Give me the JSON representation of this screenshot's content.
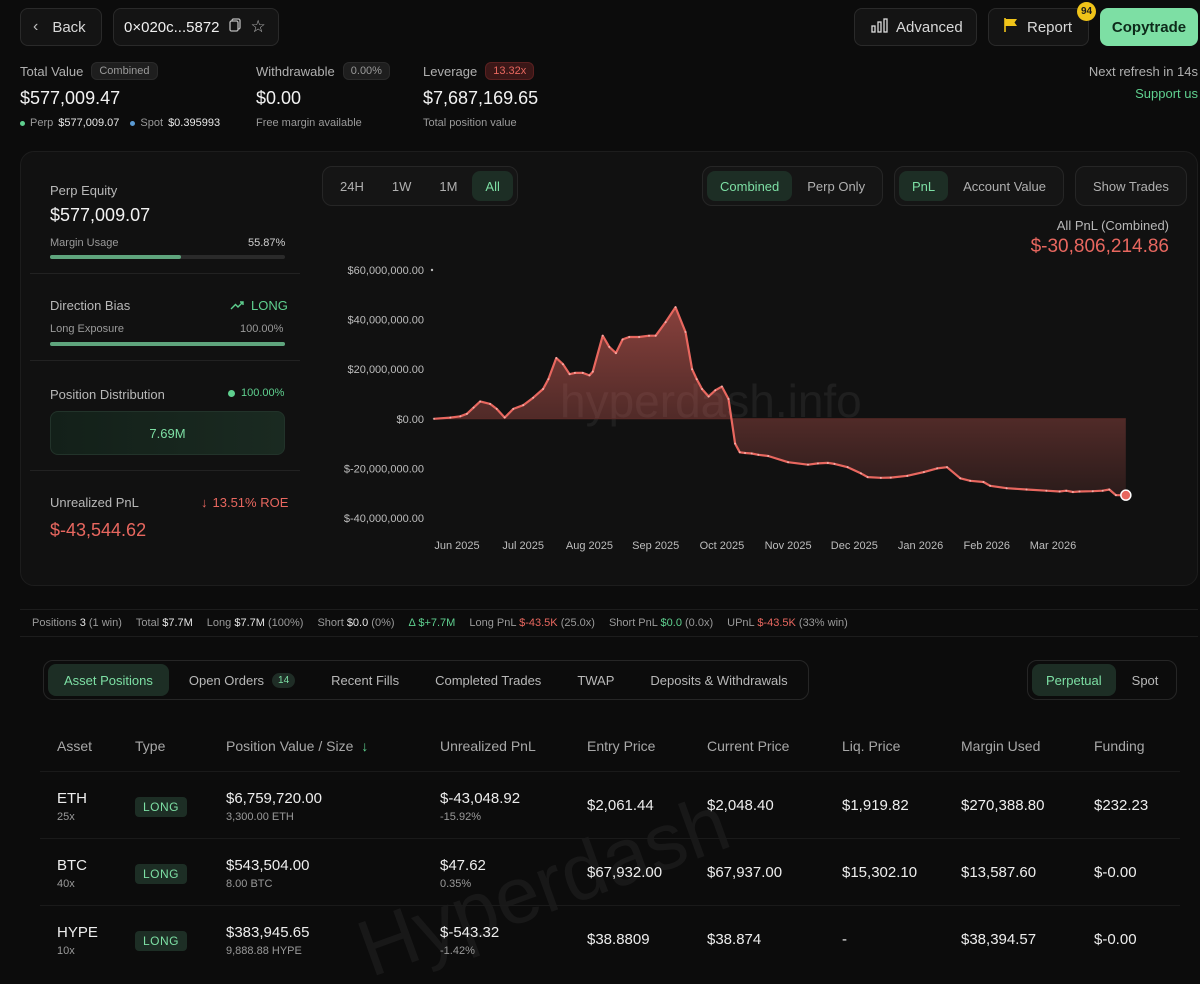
{
  "header": {
    "back_label": "Back",
    "address": "0×020c...5872",
    "advanced_label": "Advanced",
    "report_label": "Report",
    "report_badge": "94",
    "copytrade_label": "Copytrade"
  },
  "summary": {
    "total_value": {
      "label": "Total Value",
      "pill": "Combined",
      "value": "$577,009.47",
      "perp_label": "Perp",
      "perp_value": "$577,009.07",
      "spot_label": "Spot",
      "spot_value": "$0.395993"
    },
    "withdrawable": {
      "label": "Withdrawable",
      "pill": "0.00%",
      "value": "$0.00",
      "sub": "Free margin available"
    },
    "leverage": {
      "label": "Leverage",
      "pill": "13.32x",
      "value": "$7,687,169.65",
      "sub": "Total position value"
    },
    "refresh_text": "Next refresh in 14s",
    "support_label": "Support us"
  },
  "left_panel": {
    "perp_equity_label": "Perp Equity",
    "perp_equity_value": "$577,009.07",
    "margin_usage_label": "Margin Usage",
    "margin_usage_value": "55.87%",
    "margin_usage_fraction": 0.5587,
    "direction_bias_label": "Direction Bias",
    "direction_bias_value": "LONG",
    "long_exposure_label": "Long Exposure",
    "long_exposure_value": "100.00%",
    "long_exposure_fraction": 1.0,
    "position_distribution_label": "Position Distribution",
    "position_distribution_value": "100.00%",
    "distribution_bar_label": "7.69M",
    "unrealized_pnl_label": "Unrealized PnL",
    "unrealized_roe": "13.51% ROE",
    "unrealized_pnl_value": "$-43,544.62"
  },
  "chart_controls": {
    "ranges": [
      "24H",
      "1W",
      "1M",
      "All"
    ],
    "active_range": "All",
    "scope": [
      "Combined",
      "Perp Only"
    ],
    "active_scope": "Combined",
    "metric": [
      "PnL",
      "Account Value"
    ],
    "active_metric": "PnL",
    "show_trades_label": "Show Trades"
  },
  "chart_data": {
    "type": "area",
    "title": "All PnL (Combined)",
    "headline_value": "$-30,806,214.86",
    "watermark": "hyperdash.info",
    "x_tick_labels": [
      "Jun 2025",
      "Jul 2025",
      "Aug 2025",
      "Sep 2025",
      "Oct 2025",
      "Nov 2025",
      "Dec 2025",
      "Jan 2026",
      "Feb 2026",
      "Mar 2026"
    ],
    "y_tick_labels": [
      "$60,000,000.00",
      "$40,000,000.00",
      "$20,000,000.00",
      "$0.00",
      "$-20,000,000.00",
      "$-40,000,000.00"
    ],
    "y_ticks": [
      60000000,
      40000000,
      20000000,
      0,
      -20000000,
      -40000000
    ],
    "ylim": [
      -40000000,
      60000000
    ],
    "x_month_positions": [
      0,
      1,
      2,
      3,
      4,
      5,
      6,
      7,
      8,
      9
    ],
    "series": [
      {
        "x": [
          -0.35,
          -0.1,
          0.05,
          0.15,
          0.25,
          0.35,
          0.5,
          0.6,
          0.72,
          0.85,
          1.0,
          1.15,
          1.3,
          1.38,
          1.5,
          1.6,
          1.7,
          1.78,
          1.9,
          2.0,
          2.05,
          2.2,
          2.3,
          2.4,
          2.5,
          2.6,
          2.75,
          2.9,
          3.0,
          3.15,
          3.3,
          3.45,
          3.55,
          3.62,
          3.7,
          3.8,
          3.9,
          4.0,
          4.1,
          4.2,
          4.27,
          4.35,
          4.45,
          4.55,
          4.7,
          5.0,
          5.3,
          5.45,
          5.6,
          5.7,
          5.9,
          6.1,
          6.2,
          6.4,
          6.55,
          6.8,
          7.05,
          7.25,
          7.4,
          7.6,
          7.75,
          7.95,
          8.05,
          8.3,
          8.6,
          8.9,
          9.1,
          9.2,
          9.3,
          9.4,
          9.6,
          9.75,
          9.85,
          9.95,
          10.1
        ],
        "y": [
          0,
          500000,
          1000000,
          2000000,
          4500000,
          7000000,
          6000000,
          4000000,
          500000,
          4000000,
          5500000,
          8500000,
          12000000,
          16000000,
          24500000,
          22000000,
          18000000,
          18500000,
          18500000,
          17500000,
          19000000,
          33500000,
          29000000,
          26500000,
          32000000,
          33000000,
          33000000,
          33500000,
          33500000,
          39000000,
          45000000,
          35000000,
          20000000,
          16000000,
          12000000,
          9000000,
          11500000,
          13000000,
          8000000,
          -10000000,
          -13500000,
          -13800000,
          -14000000,
          -14500000,
          -15000000,
          -17500000,
          -18500000,
          -18000000,
          -17800000,
          -18200000,
          -19500000,
          -22000000,
          -23500000,
          -23800000,
          -23700000,
          -23000000,
          -21500000,
          -20000000,
          -19500000,
          -24000000,
          -25000000,
          -25500000,
          -27000000,
          -28000000,
          -28500000,
          -29000000,
          -29300000,
          -29000000,
          -29500000,
          -29300000,
          -29200000,
          -29000000,
          -28500000,
          -30800000,
          -30800000
        ]
      }
    ],
    "legend": "none",
    "grid": false
  },
  "stats_strip": {
    "positions_label": "Positions",
    "positions_value": "3",
    "positions_note": "(1 win)",
    "total_label": "Total",
    "total_value": "$7.7M",
    "long_label": "Long",
    "long_value": "$7.7M",
    "long_note": "(100%)",
    "short_label": "Short",
    "short_value": "$0.0",
    "short_note": "(0%)",
    "delta_label": "Δ",
    "delta_value": "$+7.7M",
    "long_pnl_label": "Long PnL",
    "long_pnl_value": "$-43.5K",
    "long_pnl_note": "(25.0x)",
    "short_pnl_label": "Short PnL",
    "short_pnl_value": "$0.0",
    "short_pnl_note": "(0.0x)",
    "upnl_label": "UPnL",
    "upnl_value": "$-43.5K",
    "upnl_note": "(33% win)"
  },
  "tabs": {
    "items": [
      "Asset Positions",
      "Open Orders",
      "Recent Fills",
      "Completed Trades",
      "TWAP",
      "Deposits & Withdrawals"
    ],
    "open_orders_count": "14",
    "market": [
      "Perpetual",
      "Spot"
    ]
  },
  "table": {
    "watermark": "Hyperdash",
    "columns": [
      "Asset",
      "Type",
      "Position Value / Size",
      "Unrealized PnL",
      "Entry Price",
      "Current Price",
      "Liq. Price",
      "Margin Used",
      "Funding"
    ],
    "rows": [
      {
        "asset": "ETH",
        "leverage": "25x",
        "type": "LONG",
        "value": "$6,759,720.00",
        "size": "3,300.00 ETH",
        "upnl": "$-43,048.92",
        "upnl_pct": "-15.92%",
        "entry": "$2,061.44",
        "current": "$2,048.40",
        "liq": "$1,919.82",
        "margin": "$270,388.80",
        "funding": "$232.23"
      },
      {
        "asset": "BTC",
        "leverage": "40x",
        "type": "LONG",
        "value": "$543,504.00",
        "size": "8.00 BTC",
        "upnl": "$47.62",
        "upnl_pct": "0.35%",
        "entry": "$67,932.00",
        "current": "$67,937.00",
        "liq": "$15,302.10",
        "margin": "$13,587.60",
        "funding": "$-0.00"
      },
      {
        "asset": "HYPE",
        "leverage": "10x",
        "type": "LONG",
        "value": "$383,945.65",
        "size": "9,888.88 HYPE",
        "upnl": "$-543.32",
        "upnl_pct": "-1.42%",
        "entry": "$38.8809",
        "current": "$38.874",
        "liq": "-",
        "margin": "$38,394.57",
        "funding": "$-0.00"
      }
    ]
  },
  "colors": {
    "accent": "#7ddfa4",
    "negative": "#e8675f",
    "positive": "#5fd08f",
    "background": "#0c0c0c"
  }
}
